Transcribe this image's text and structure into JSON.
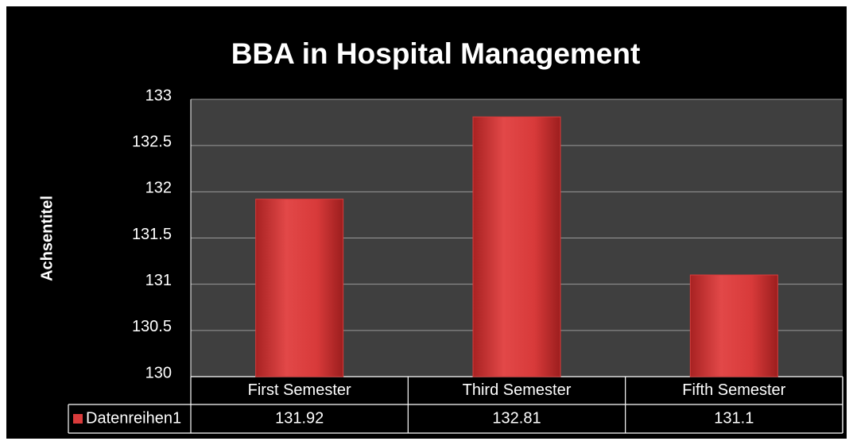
{
  "chart_data": {
    "type": "bar",
    "title": "BBA in Hospital Management",
    "y_label": "Achsentitel",
    "categories": [
      "First Semester",
      "Third Semester",
      "Fifth Semester"
    ],
    "series": [
      {
        "name": "Datenreihen1",
        "color": "#d93b3b",
        "values": [
          131.92,
          132.81,
          131.1
        ]
      }
    ],
    "ylim": [
      130,
      133
    ],
    "yticks": [
      130,
      130.5,
      131,
      131.5,
      132,
      132.5,
      133
    ],
    "grid": true,
    "data_table": true
  }
}
